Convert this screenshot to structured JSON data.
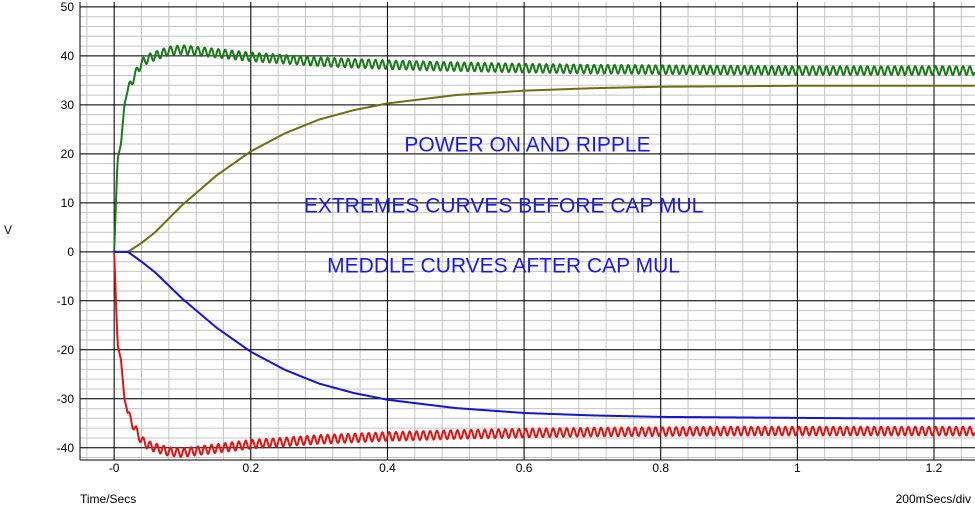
{
  "chart_data": {
    "type": "line",
    "xlabel": "Time/Secs",
    "ylabel": "V",
    "x_scale_label": "200mSecs/div",
    "xlim": [
      -0.05,
      1.26
    ],
    "ylim": [
      -42.5,
      51
    ],
    "x_ticks": [
      {
        "value": 0,
        "label": "-0"
      },
      {
        "value": 0.2,
        "label": "0.2"
      },
      {
        "value": 0.4,
        "label": "0.4"
      },
      {
        "value": 0.6,
        "label": "0.6"
      },
      {
        "value": 0.8,
        "label": "0.8"
      },
      {
        "value": 1.0,
        "label": "1"
      },
      {
        "value": 1.2,
        "label": "1.2"
      }
    ],
    "y_ticks": [
      {
        "value": 50,
        "label": "50"
      },
      {
        "value": 40,
        "label": "40"
      },
      {
        "value": 30,
        "label": "30"
      },
      {
        "value": 20,
        "label": "20"
      },
      {
        "value": 10,
        "label": "10"
      },
      {
        "value": 0,
        "label": "0"
      },
      {
        "value": -10,
        "label": "-10"
      },
      {
        "value": -20,
        "label": "-20"
      },
      {
        "value": -30,
        "label": "-30"
      },
      {
        "value": -40,
        "label": "-40"
      }
    ],
    "grid": true,
    "annotations": [
      {
        "text": "POWER ON AND RIPPLE",
        "x": 0.605,
        "y": 20.5
      },
      {
        "text": "EXTREMES CURVES  BEFORE CAP MUL",
        "x": 0.57,
        "y": 8.0
      },
      {
        "text": "MEDDLE CURVES AFTER CAP MUL",
        "x": 0.57,
        "y": -4.2
      }
    ],
    "series": [
      {
        "color": "#1b7a1b",
        "ripple": 0.9,
        "x": [
          0,
          0.005,
          0.01,
          0.015,
          0.02,
          0.03,
          0.04,
          0.05,
          0.06,
          0.08,
          0.1,
          0.14,
          0.2,
          0.3,
          0.4,
          0.5,
          0.6,
          0.7,
          0.8,
          0.9,
          1.0,
          1.1,
          1.2,
          1.26
        ],
        "y": [
          0,
          19,
          22,
          30,
          33,
          36,
          38.5,
          39.5,
          40,
          41,
          41.3,
          40.7,
          39.8,
          38.8,
          38.2,
          37.8,
          37.5,
          37.3,
          37.2,
          37.1,
          37.0,
          37.0,
          37.0,
          37.0
        ]
      },
      {
        "color": "#e01414",
        "ripple": 0.9,
        "x": [
          0,
          0.005,
          0.01,
          0.015,
          0.02,
          0.03,
          0.04,
          0.05,
          0.06,
          0.08,
          0.1,
          0.14,
          0.2,
          0.3,
          0.4,
          0.5,
          0.6,
          0.7,
          0.8,
          0.9,
          1.0,
          1.1,
          1.2,
          1.26
        ],
        "y": [
          0,
          -19,
          -22,
          -30,
          -33,
          -36,
          -38.5,
          -39.5,
          -40,
          -40.8,
          -41,
          -40.3,
          -39.3,
          -38.3,
          -37.7,
          -37.3,
          -37.0,
          -36.8,
          -36.7,
          -36.6,
          -36.6,
          -36.6,
          -36.6,
          -36.6
        ]
      },
      {
        "color": "#6e6e14",
        "ripple": 0,
        "x": [
          0,
          0.02,
          0.04,
          0.06,
          0.1,
          0.15,
          0.2,
          0.25,
          0.3,
          0.35,
          0.4,
          0.5,
          0.6,
          0.7,
          0.8,
          0.9,
          1.0,
          1.1,
          1.2,
          1.26
        ],
        "y": [
          0,
          0,
          1.8,
          4,
          9.6,
          15.6,
          20.5,
          24.2,
          27,
          28.9,
          30.3,
          32,
          32.9,
          33.4,
          33.7,
          33.8,
          33.9,
          33.9,
          33.9,
          33.9
        ]
      },
      {
        "color": "#1414d8",
        "ripple": 0,
        "x": [
          0,
          0.02,
          0.04,
          0.06,
          0.1,
          0.15,
          0.2,
          0.25,
          0.3,
          0.35,
          0.4,
          0.5,
          0.6,
          0.7,
          0.8,
          0.9,
          1.0,
          1.1,
          1.2,
          1.26
        ],
        "y": [
          0,
          0,
          -2,
          -4.2,
          -9.6,
          -15.5,
          -20.4,
          -24.1,
          -26.9,
          -28.8,
          -30.2,
          -31.9,
          -32.9,
          -33.4,
          -33.7,
          -33.8,
          -33.9,
          -34,
          -34,
          -34
        ]
      }
    ]
  }
}
